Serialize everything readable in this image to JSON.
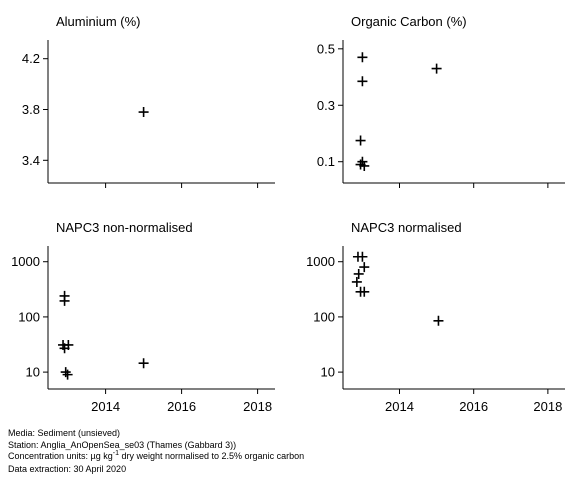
{
  "chart_data": [
    {
      "type": "scatter",
      "title": "Aluminium (%)",
      "scale": "linear",
      "ylim": [
        3.3,
        4.3
      ],
      "yticks": [
        3.4,
        3.8,
        4.2
      ],
      "ytick_labels": [
        "3.4",
        "3.8",
        "4.2"
      ],
      "xlim": [
        2012.8,
        2018.3
      ],
      "xticks": [
        2014,
        2016,
        2018
      ],
      "xtick_labels": [],
      "points": [
        {
          "x": 2015.0,
          "y": 3.78
        }
      ]
    },
    {
      "type": "scatter",
      "title": "Organic Carbon (%)",
      "scale": "linear",
      "ylim": [
        0.06,
        0.51
      ],
      "yticks": [
        0.1,
        0.3,
        0.5
      ],
      "ytick_labels": [
        "0.1",
        "0.3",
        "0.5"
      ],
      "xlim": [
        2012.8,
        2018.3
      ],
      "xticks": [
        2014,
        2016,
        2018
      ],
      "xtick_labels": [],
      "points": [
        {
          "x": 2013.0,
          "y": 0.47
        },
        {
          "x": 2013.0,
          "y": 0.385
        },
        {
          "x": 2012.95,
          "y": 0.175
        },
        {
          "x": 2013.0,
          "y": 0.1
        },
        {
          "x": 2012.95,
          "y": 0.09
        },
        {
          "x": 2013.05,
          "y": 0.085
        },
        {
          "x": 2015.0,
          "y": 0.43
        }
      ]
    },
    {
      "type": "scatter",
      "title": "NAPC3 non-normalised",
      "scale": "log",
      "ylim": [
        7.5,
        1500
      ],
      "yticks": [
        10,
        100,
        1000
      ],
      "ytick_labels": [
        "10",
        "100",
        "1000"
      ],
      "xlim": [
        2012.8,
        2018.3
      ],
      "xticks": [
        2014,
        2016,
        2018
      ],
      "xtick_labels": [
        "2014",
        "2016",
        "2018"
      ],
      "points": [
        {
          "x": 2012.92,
          "y": 240
        },
        {
          "x": 2012.92,
          "y": 195
        },
        {
          "x": 2012.88,
          "y": 31
        },
        {
          "x": 2013.02,
          "y": 31
        },
        {
          "x": 2012.92,
          "y": 27
        },
        {
          "x": 2012.95,
          "y": 10
        },
        {
          "x": 2013.0,
          "y": 9
        },
        {
          "x": 2015.0,
          "y": 14.5
        }
      ]
    },
    {
      "type": "scatter",
      "title": "NAPC3 normalised",
      "scale": "log",
      "ylim": [
        7.5,
        1500
      ],
      "yticks": [
        10,
        100,
        1000
      ],
      "ytick_labels": [
        "10",
        "100",
        "1000"
      ],
      "xlim": [
        2012.8,
        2018.3
      ],
      "xticks": [
        2014,
        2016,
        2018
      ],
      "xtick_labels": [
        "2014",
        "2016",
        "2018"
      ],
      "points": [
        {
          "x": 2012.88,
          "y": 1230
        },
        {
          "x": 2013.0,
          "y": 1230
        },
        {
          "x": 2013.05,
          "y": 800
        },
        {
          "x": 2012.9,
          "y": 600
        },
        {
          "x": 2012.85,
          "y": 430
        },
        {
          "x": 2012.95,
          "y": 285
        },
        {
          "x": 2013.05,
          "y": 285
        },
        {
          "x": 2015.05,
          "y": 85
        }
      ]
    }
  ],
  "footer": {
    "media": "Media: Sediment (unsieved)",
    "station": "Station: Anglia_AnOpenSea_se03 (Thames (Gabbard 3))",
    "units_prefix": "Concentration units:  µg kg",
    "units_sup": "-1",
    "units_suffix": " dry weight normalised to 2.5% organic carbon",
    "extraction": "Data extraction: 30 April 2020"
  }
}
